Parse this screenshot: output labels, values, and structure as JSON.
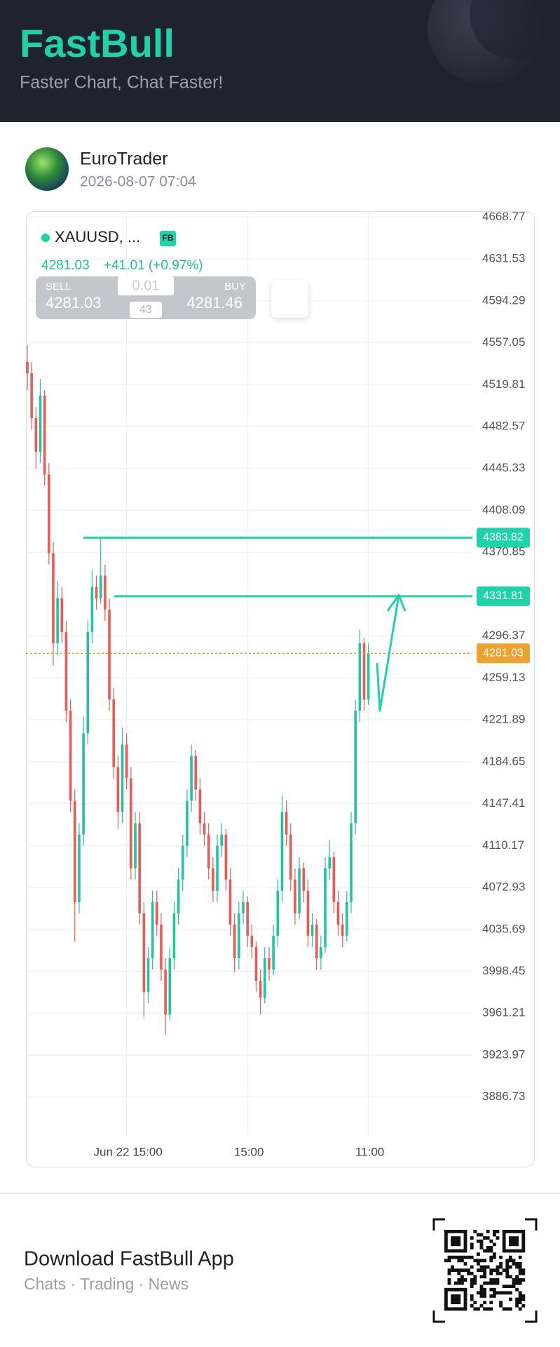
{
  "header": {
    "title": "FastBull",
    "subtitle": "Faster Chart, Chat Faster!"
  },
  "post": {
    "author": "EuroTrader",
    "timestamp": "2026-08-07 07:04"
  },
  "quote": {
    "symbol": "XAUUSD, ...",
    "badge": "FB",
    "last": "4281.03",
    "change": "+41.01 (+0.97%)",
    "sell_label": "SELL",
    "sell": "4281.03",
    "buy_label": "BUY",
    "buy": "4281.46",
    "lots": "0.01",
    "spread": "43"
  },
  "chart_data": {
    "type": "candlestick",
    "categories": [
      null,
      null,
      null,
      null,
      null,
      null,
      null,
      null,
      null,
      null,
      null,
      null,
      null,
      null,
      null,
      null,
      null,
      null,
      null,
      null,
      null,
      null,
      null,
      "Jun 22 15:00",
      null,
      null,
      null,
      null,
      null,
      null,
      null,
      null,
      null,
      null,
      null,
      null,
      null,
      null,
      null,
      null,
      null,
      null,
      null,
      null,
      null,
      null,
      null,
      null,
      null,
      null,
      null,
      "15:00",
      null,
      null,
      null,
      null,
      null,
      null,
      null,
      null,
      null,
      null,
      null,
      null,
      null,
      null,
      null,
      null,
      null,
      null,
      null,
      null,
      null,
      null,
      null,
      null,
      null,
      null,
      null,
      "11:00"
    ],
    "open": [
      4540,
      4530,
      4490,
      4460,
      4510,
      4440,
      4370,
      4290,
      4330,
      4300,
      4230,
      4150,
      4060,
      4120,
      4210,
      4300,
      4340,
      4330,
      4350,
      4320,
      4240,
      4180,
      4140,
      4200,
      4170,
      4090,
      4130,
      4050,
      3980,
      4010,
      4060,
      4040,
      4000,
      3960,
      4010,
      4050,
      4080,
      4110,
      4150,
      4190,
      4160,
      4130,
      4120,
      4090,
      4070,
      4110,
      4120,
      4080,
      4040,
      4010,
      4050,
      4060,
      4030,
      4020,
      3990,
      3975,
      4010,
      4000,
      4030,
      4070,
      4140,
      4120,
      4080,
      4050,
      4090,
      4070,
      4030,
      4040,
      4010,
      4020,
      4090,
      4100,
      4060,
      4040,
      4030,
      4060,
      4130,
      4230,
      4290,
      4240
    ],
    "high": [
      4555,
      4540,
      4500,
      4525,
      4515,
      4450,
      4380,
      4345,
      4340,
      4310,
      4240,
      4160,
      4130,
      4225,
      4310,
      4355,
      4350,
      4385,
      4360,
      4330,
      4250,
      4190,
      4215,
      4210,
      4180,
      4140,
      4140,
      4060,
      4020,
      4070,
      4070,
      4050,
      4010,
      4020,
      4060,
      4090,
      4120,
      4160,
      4200,
      4195,
      4170,
      4140,
      4130,
      4100,
      4120,
      4130,
      4125,
      4090,
      4050,
      4060,
      4070,
      4065,
      4040,
      4025,
      4000,
      4020,
      4020,
      4040,
      4080,
      4155,
      4150,
      4130,
      4090,
      4100,
      4095,
      4080,
      4050,
      4045,
      4030,
      4100,
      4115,
      4105,
      4070,
      4050,
      4070,
      4140,
      4240,
      4302,
      4295,
      4290
    ],
    "low": [
      4515,
      4480,
      4445,
      4450,
      4430,
      4360,
      4270,
      4280,
      4290,
      4220,
      4140,
      4025,
      4050,
      4110,
      4200,
      4290,
      4320,
      4325,
      4310,
      4230,
      4170,
      4125,
      4130,
      4160,
      4080,
      4080,
      4040,
      3958,
      3970,
      4000,
      4030,
      3990,
      3942,
      3955,
      4000,
      4040,
      4070,
      4100,
      4140,
      4150,
      4120,
      4110,
      4080,
      4060,
      4060,
      4100,
      4070,
      4030,
      3998,
      4000,
      4040,
      4020,
      4010,
      3980,
      3960,
      3970,
      3990,
      3995,
      4020,
      4060,
      4110,
      4070,
      4040,
      4045,
      4060,
      4020,
      4020,
      4000,
      4000,
      4015,
      4080,
      4050,
      4030,
      4020,
      4025,
      4050,
      4120,
      4220,
      4230,
      4235
    ],
    "close": [
      4530,
      4490,
      4460,
      4510,
      4440,
      4370,
      4290,
      4330,
      4300,
      4230,
      4150,
      4060,
      4120,
      4210,
      4300,
      4340,
      4330,
      4350,
      4320,
      4240,
      4180,
      4140,
      4200,
      4170,
      4090,
      4130,
      4050,
      3980,
      4010,
      4060,
      4040,
      4000,
      3960,
      4010,
      4050,
      4080,
      4110,
      4150,
      4190,
      4160,
      4130,
      4120,
      4090,
      4070,
      4110,
      4120,
      4080,
      4040,
      4010,
      4050,
      4060,
      4030,
      4020,
      3990,
      3975,
      4010,
      4000,
      4030,
      4070,
      4140,
      4120,
      4080,
      4050,
      4090,
      4070,
      4030,
      4040,
      4010,
      4020,
      4090,
      4100,
      4060,
      4040,
      4030,
      4060,
      4130,
      4230,
      4290,
      4240,
      4281.03
    ],
    "up_color": "#22c59b",
    "down_color": "#ea5a56",
    "ylim": [
      3851,
      4674
    ],
    "yticks": [
      4668.77,
      4631.53,
      4594.29,
      4557.05,
      4519.81,
      4482.57,
      4445.33,
      4408.09,
      4370.85,
      4296.37,
      4259.13,
      4221.89,
      4184.65,
      4147.41,
      4110.17,
      4072.93,
      4035.69,
      3998.45,
      3961.21,
      3923.97,
      3886.73
    ],
    "grid": true,
    "lines": [
      {
        "value": 4383.82,
        "color": "#1ed3a8"
      },
      {
        "value": 4331.81,
        "color": "#1ed3a8"
      }
    ],
    "last_price": {
      "value": 4281.03,
      "color": "#f0a22e"
    }
  },
  "footer": {
    "title": "Download FastBull App",
    "subtitle": "Chats · Trading · News"
  }
}
